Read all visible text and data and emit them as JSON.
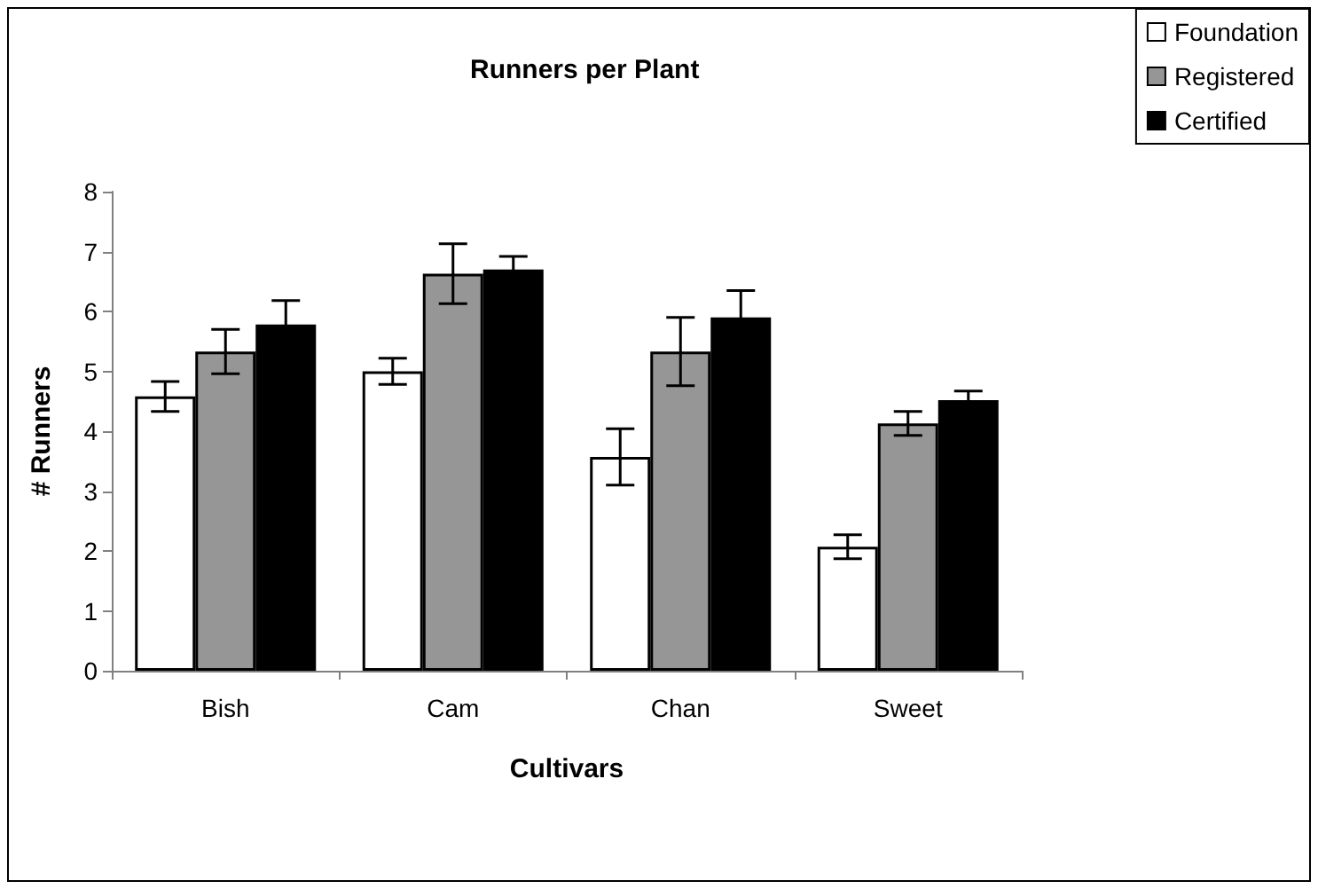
{
  "chart_data": {
    "type": "bar",
    "title": "Runners per Plant",
    "xlabel": "Cultivars",
    "ylabel": "# Runners",
    "categories": [
      "Bish",
      "Cam",
      "Chan",
      "Sweet"
    ],
    "series": [
      {
        "name": "Foundation",
        "color": "#ffffff",
        "values": [
          4.58,
          5.0,
          3.57,
          2.07
        ],
        "errors": [
          0.25,
          0.22,
          0.47,
          0.2
        ]
      },
      {
        "name": "Registered",
        "color": "#969696",
        "values": [
          5.33,
          6.63,
          5.33,
          4.13
        ],
        "errors": [
          0.37,
          0.5,
          0.57,
          0.2
        ]
      },
      {
        "name": "Certified",
        "color": "#000000",
        "values": [
          5.78,
          6.7,
          5.9,
          4.52
        ],
        "errors": [
          0.4,
          0.22,
          0.45,
          0.15
        ]
      }
    ],
    "ylim": [
      0,
      8
    ],
    "yticks": [
      0,
      1,
      2,
      3,
      4,
      5,
      6,
      7,
      8
    ],
    "grid": false,
    "legend": "top right"
  }
}
